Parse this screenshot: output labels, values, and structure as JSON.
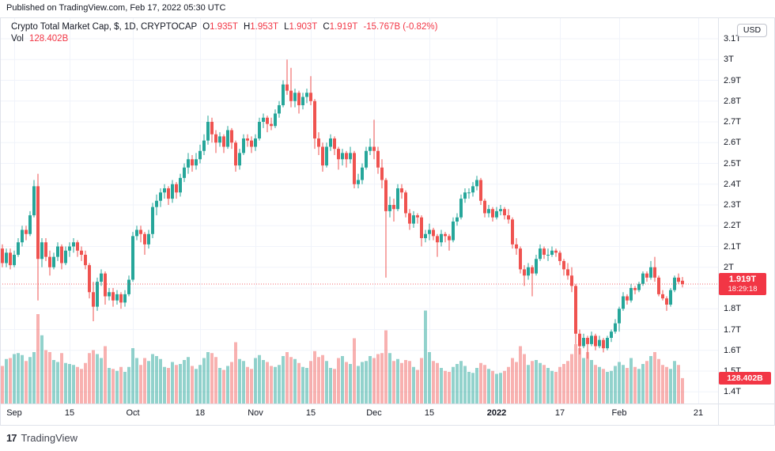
{
  "published_bar": {
    "text": "Published on TradingView.com, Feb 17, 2022 05:30 UTC"
  },
  "legend": {
    "title": "Crypto Total Market Cap, $, 1D, CRYPTOCAP",
    "open_label": "O",
    "open": "1.935T",
    "high_label": "H",
    "high": "1.953T",
    "low_label": "L",
    "low": "1.903T",
    "close_label": "C",
    "close": "1.919T",
    "change": "-15.767B (-0.82%)",
    "vol_label": "Vol",
    "vol": "128.402B"
  },
  "price_axis": {
    "currency": "USD",
    "labels": [
      {
        "text": "3.1T",
        "value": 3.1
      },
      {
        "text": "3T",
        "value": 3.0
      },
      {
        "text": "2.9T",
        "value": 2.9
      },
      {
        "text": "2.8T",
        "value": 2.8
      },
      {
        "text": "2.7T",
        "value": 2.7
      },
      {
        "text": "2.6T",
        "value": 2.6
      },
      {
        "text": "2.5T",
        "value": 2.5
      },
      {
        "text": "2.4T",
        "value": 2.4
      },
      {
        "text": "2.3T",
        "value": 2.3
      },
      {
        "text": "2.2T",
        "value": 2.2
      },
      {
        "text": "2.1T",
        "value": 2.1
      },
      {
        "text": "2T",
        "value": 2.0
      },
      {
        "text": "1.8T",
        "value": 1.8
      },
      {
        "text": "1.7T",
        "value": 1.7
      },
      {
        "text": "1.6T",
        "value": 1.6
      },
      {
        "text": "1.5T",
        "value": 1.5
      },
      {
        "text": "1.4T",
        "value": 1.4
      }
    ]
  },
  "price_label": {
    "value": "1.919T",
    "countdown": "18:29:18"
  },
  "volume_label": {
    "value": "128.402B"
  },
  "time_axis": {
    "labels": [
      {
        "text": "Sep",
        "i": 3
      },
      {
        "text": "15",
        "i": 17
      },
      {
        "text": "Oct",
        "i": 33
      },
      {
        "text": "18",
        "i": 50
      },
      {
        "text": "Nov",
        "i": 64
      },
      {
        "text": "15",
        "i": 78
      },
      {
        "text": "Dec",
        "i": 94
      },
      {
        "text": "15",
        "i": 108
      },
      {
        "text": "2022",
        "i": 125,
        "bold": true
      },
      {
        "text": "17",
        "i": 141
      },
      {
        "text": "Feb",
        "i": 156
      },
      {
        "text": "21",
        "i": 176
      }
    ]
  },
  "footer": {
    "logo_mark": "17",
    "brand": "TradingView"
  },
  "colors": {
    "up": "#26a69a",
    "down": "#ef5350",
    "volume_up": "rgba(38,166,154,0.5)",
    "volume_down": "rgba(239,83,80,0.45)",
    "accent_red": "#f23645",
    "grid": "#f0f3fa",
    "border": "#e0e3eb",
    "text": "#131722"
  },
  "chart_data": {
    "type": "candlestick",
    "symbol": "Crypto Total Market Cap, $, 1D, CRYPTOCAP",
    "interval": "1D",
    "start_date": "2021-08-29",
    "end_date": "2022-02-17",
    "price_unit": "trillion USD",
    "volume_unit": "billion USD",
    "ylim": [
      1.4,
      3.1
    ],
    "current_price": 1.919,
    "last_ohlc": {
      "o": 1.935,
      "h": 1.953,
      "l": 1.903,
      "c": 1.919
    },
    "last_volume": 128.402,
    "candles": [
      [
        2.09,
        2.11,
        2.0,
        2.02
      ],
      [
        2.02,
        2.09,
        2.0,
        2.07
      ],
      [
        2.07,
        2.09,
        1.99,
        2.01
      ],
      [
        2.01,
        2.08,
        2.0,
        2.06
      ],
      [
        2.06,
        2.14,
        2.05,
        2.12
      ],
      [
        2.12,
        2.2,
        2.1,
        2.18
      ],
      [
        2.18,
        2.2,
        2.13,
        2.16
      ],
      [
        2.16,
        2.27,
        2.15,
        2.25
      ],
      [
        2.25,
        2.42,
        2.24,
        2.39
      ],
      [
        2.39,
        2.45,
        1.84,
        2.04
      ],
      [
        2.04,
        2.14,
        2.0,
        2.12
      ],
      [
        2.12,
        2.14,
        2.03,
        2.05
      ],
      [
        2.05,
        2.08,
        1.96,
        2.0
      ],
      [
        2.0,
        2.07,
        1.99,
        2.05
      ],
      [
        2.05,
        2.12,
        2.03,
        2.1
      ],
      [
        2.1,
        2.11,
        1.99,
        2.02
      ],
      [
        2.02,
        2.1,
        2.01,
        2.08
      ],
      [
        2.08,
        2.12,
        2.05,
        2.1
      ],
      [
        2.1,
        2.14,
        2.07,
        2.12
      ],
      [
        2.12,
        2.13,
        2.05,
        2.08
      ],
      [
        2.08,
        2.1,
        2.03,
        2.06
      ],
      [
        2.06,
        2.08,
        1.99,
        2.01
      ],
      [
        2.01,
        2.02,
        1.85,
        1.88
      ],
      [
        1.88,
        1.93,
        1.74,
        1.81
      ],
      [
        1.81,
        1.95,
        1.79,
        1.93
      ],
      [
        1.93,
        1.99,
        1.91,
        1.97
      ],
      [
        1.97,
        1.98,
        1.82,
        1.86
      ],
      [
        1.86,
        1.9,
        1.84,
        1.88
      ],
      [
        1.88,
        1.9,
        1.81,
        1.84
      ],
      [
        1.84,
        1.89,
        1.82,
        1.87
      ],
      [
        1.87,
        1.88,
        1.8,
        1.83
      ],
      [
        1.83,
        1.89,
        1.81,
        1.87
      ],
      [
        1.87,
        1.96,
        1.86,
        1.94
      ],
      [
        1.94,
        2.17,
        1.93,
        2.15
      ],
      [
        2.15,
        2.2,
        2.13,
        2.18
      ],
      [
        2.18,
        2.2,
        2.12,
        2.16
      ],
      [
        2.16,
        2.17,
        2.06,
        2.11
      ],
      [
        2.11,
        2.18,
        2.09,
        2.16
      ],
      [
        2.16,
        2.31,
        2.14,
        2.29
      ],
      [
        2.29,
        2.35,
        2.25,
        2.32
      ],
      [
        2.32,
        2.38,
        2.29,
        2.36
      ],
      [
        2.36,
        2.4,
        2.33,
        2.38
      ],
      [
        2.38,
        2.39,
        2.3,
        2.33
      ],
      [
        2.33,
        2.42,
        2.31,
        2.4
      ],
      [
        2.4,
        2.41,
        2.33,
        2.36
      ],
      [
        2.36,
        2.45,
        2.34,
        2.43
      ],
      [
        2.43,
        2.5,
        2.41,
        2.48
      ],
      [
        2.48,
        2.55,
        2.45,
        2.52
      ],
      [
        2.52,
        2.54,
        2.46,
        2.49
      ],
      [
        2.49,
        2.55,
        2.47,
        2.52
      ],
      [
        2.52,
        2.59,
        2.5,
        2.56
      ],
      [
        2.56,
        2.64,
        2.54,
        2.61
      ],
      [
        2.61,
        2.73,
        2.59,
        2.7
      ],
      [
        2.7,
        2.72,
        2.6,
        2.64
      ],
      [
        2.64,
        2.66,
        2.55,
        2.6
      ],
      [
        2.6,
        2.65,
        2.58,
        2.63
      ],
      [
        2.63,
        2.64,
        2.55,
        2.58
      ],
      [
        2.58,
        2.68,
        2.57,
        2.66
      ],
      [
        2.66,
        2.67,
        2.57,
        2.6
      ],
      [
        2.6,
        2.61,
        2.46,
        2.49
      ],
      [
        2.49,
        2.57,
        2.47,
        2.55
      ],
      [
        2.55,
        2.64,
        2.54,
        2.62
      ],
      [
        2.62,
        2.64,
        2.58,
        2.61
      ],
      [
        2.61,
        2.63,
        2.55,
        2.58
      ],
      [
        2.58,
        2.64,
        2.56,
        2.62
      ],
      [
        2.62,
        2.72,
        2.61,
        2.7
      ],
      [
        2.7,
        2.74,
        2.67,
        2.72
      ],
      [
        2.72,
        2.73,
        2.65,
        2.69
      ],
      [
        2.69,
        2.72,
        2.66,
        2.68
      ],
      [
        2.68,
        2.76,
        2.67,
        2.74
      ],
      [
        2.74,
        2.8,
        2.72,
        2.78
      ],
      [
        2.78,
        2.9,
        2.77,
        2.88
      ],
      [
        2.88,
        3.0,
        2.83,
        2.85
      ],
      [
        2.85,
        2.96,
        2.77,
        2.8
      ],
      [
        2.8,
        2.86,
        2.77,
        2.84
      ],
      [
        2.84,
        2.85,
        2.74,
        2.78
      ],
      [
        2.78,
        2.84,
        2.76,
        2.82
      ],
      [
        2.82,
        2.86,
        2.79,
        2.84
      ],
      [
        2.84,
        2.92,
        2.78,
        2.8
      ],
      [
        2.8,
        2.81,
        2.57,
        2.62
      ],
      [
        2.62,
        2.65,
        2.54,
        2.58
      ],
      [
        2.58,
        2.6,
        2.46,
        2.49
      ],
      [
        2.49,
        2.6,
        2.48,
        2.58
      ],
      [
        2.58,
        2.64,
        2.56,
        2.62
      ],
      [
        2.62,
        2.63,
        2.54,
        2.57
      ],
      [
        2.57,
        2.58,
        2.47,
        2.52
      ],
      [
        2.52,
        2.57,
        2.49,
        2.55
      ],
      [
        2.55,
        2.56,
        2.48,
        2.52
      ],
      [
        2.52,
        2.58,
        2.5,
        2.55
      ],
      [
        2.55,
        2.56,
        2.38,
        2.4
      ],
      [
        2.4,
        2.45,
        2.38,
        2.42
      ],
      [
        2.42,
        2.5,
        2.4,
        2.48
      ],
      [
        2.48,
        2.58,
        2.47,
        2.56
      ],
      [
        2.56,
        2.62,
        2.54,
        2.58
      ],
      [
        2.58,
        2.71,
        2.52,
        2.56
      ],
      [
        2.56,
        2.58,
        2.45,
        2.48
      ],
      [
        2.48,
        2.52,
        2.38,
        2.42
      ],
      [
        2.42,
        2.43,
        1.95,
        2.27
      ],
      [
        2.27,
        2.34,
        2.24,
        2.3
      ],
      [
        2.3,
        2.33,
        2.22,
        2.28
      ],
      [
        2.28,
        2.4,
        2.27,
        2.38
      ],
      [
        2.38,
        2.4,
        2.33,
        2.36
      ],
      [
        2.36,
        2.37,
        2.24,
        2.26
      ],
      [
        2.26,
        2.28,
        2.18,
        2.21
      ],
      [
        2.21,
        2.27,
        2.19,
        2.25
      ],
      [
        2.25,
        2.26,
        2.21,
        2.24
      ],
      [
        2.24,
        2.25,
        2.1,
        2.14
      ],
      [
        2.14,
        2.18,
        2.12,
        2.16
      ],
      [
        2.16,
        2.21,
        2.13,
        2.18
      ],
      [
        2.18,
        2.19,
        2.13,
        2.15
      ],
      [
        2.15,
        2.16,
        2.05,
        2.12
      ],
      [
        2.12,
        2.18,
        2.1,
        2.16
      ],
      [
        2.16,
        2.17,
        2.12,
        2.15
      ],
      [
        2.15,
        2.16,
        2.08,
        2.13
      ],
      [
        2.13,
        2.24,
        2.12,
        2.22
      ],
      [
        2.22,
        2.26,
        2.2,
        2.24
      ],
      [
        2.24,
        2.35,
        2.23,
        2.33
      ],
      [
        2.33,
        2.38,
        2.31,
        2.36
      ],
      [
        2.36,
        2.38,
        2.33,
        2.36
      ],
      [
        2.36,
        2.41,
        2.34,
        2.39
      ],
      [
        2.39,
        2.44,
        2.37,
        2.42
      ],
      [
        2.42,
        2.43,
        2.3,
        2.32
      ],
      [
        2.32,
        2.33,
        2.24,
        2.26
      ],
      [
        2.26,
        2.3,
        2.24,
        2.28
      ],
      [
        2.28,
        2.29,
        2.22,
        2.24
      ],
      [
        2.24,
        2.29,
        2.23,
        2.27
      ],
      [
        2.27,
        2.3,
        2.25,
        2.28
      ],
      [
        2.28,
        2.29,
        2.23,
        2.25
      ],
      [
        2.25,
        2.28,
        2.21,
        2.23
      ],
      [
        2.23,
        2.24,
        2.09,
        2.11
      ],
      [
        2.11,
        2.14,
        2.06,
        2.09
      ],
      [
        2.09,
        2.1,
        1.97,
        1.99
      ],
      [
        1.99,
        2.01,
        1.91,
        1.96
      ],
      [
        1.96,
        2.02,
        1.94,
        2.0
      ],
      [
        2.0,
        2.01,
        1.86,
        1.97
      ],
      [
        1.97,
        2.06,
        1.96,
        2.04
      ],
      [
        2.04,
        2.11,
        2.03,
        2.09
      ],
      [
        2.09,
        2.1,
        2.04,
        2.06
      ],
      [
        2.06,
        2.09,
        2.03,
        2.06
      ],
      [
        2.06,
        2.1,
        2.05,
        2.08
      ],
      [
        2.08,
        2.09,
        2.05,
        2.07
      ],
      [
        2.07,
        2.08,
        2.01,
        2.03
      ],
      [
        2.03,
        2.04,
        1.96,
        1.99
      ],
      [
        1.99,
        2.02,
        1.94,
        1.96
      ],
      [
        1.96,
        2.0,
        1.88,
        1.91
      ],
      [
        1.91,
        1.92,
        1.63,
        1.68
      ],
      [
        1.68,
        1.7,
        1.58,
        1.62
      ],
      [
        1.62,
        1.68,
        1.61,
        1.66
      ],
      [
        1.66,
        1.67,
        1.56,
        1.63
      ],
      [
        1.63,
        1.69,
        1.62,
        1.67
      ],
      [
        1.67,
        1.68,
        1.6,
        1.62
      ],
      [
        1.62,
        1.67,
        1.61,
        1.65
      ],
      [
        1.65,
        1.66,
        1.59,
        1.61
      ],
      [
        1.61,
        1.67,
        1.6,
        1.66
      ],
      [
        1.66,
        1.7,
        1.64,
        1.69
      ],
      [
        1.69,
        1.75,
        1.68,
        1.73
      ],
      [
        1.73,
        1.81,
        1.69,
        1.8
      ],
      [
        1.8,
        1.88,
        1.79,
        1.86
      ],
      [
        1.86,
        1.87,
        1.82,
        1.84
      ],
      [
        1.84,
        1.92,
        1.83,
        1.9
      ],
      [
        1.9,
        1.91,
        1.87,
        1.89
      ],
      [
        1.89,
        1.93,
        1.88,
        1.92
      ],
      [
        1.92,
        1.98,
        1.91,
        1.97
      ],
      [
        1.97,
        1.98,
        1.93,
        1.95
      ],
      [
        1.95,
        2.03,
        1.94,
        2.0
      ],
      [
        2.0,
        2.05,
        1.93,
        1.95
      ],
      [
        1.95,
        1.96,
        1.86,
        1.87
      ],
      [
        1.87,
        1.89,
        1.84,
        1.85
      ],
      [
        1.85,
        1.86,
        1.79,
        1.82
      ],
      [
        1.82,
        1.9,
        1.81,
        1.89
      ],
      [
        1.89,
        1.96,
        1.88,
        1.95
      ],
      [
        1.95,
        1.97,
        1.92,
        1.93
      ],
      [
        1.935,
        1.953,
        1.903,
        1.919
      ]
    ],
    "volumes": [
      190,
      225,
      230,
      250,
      255,
      245,
      215,
      235,
      260,
      452,
      345,
      270,
      260,
      220,
      210,
      255,
      205,
      200,
      195,
      185,
      175,
      205,
      255,
      270,
      250,
      230,
      290,
      180,
      175,
      165,
      185,
      160,
      185,
      280,
      230,
      195,
      230,
      215,
      250,
      240,
      225,
      185,
      180,
      210,
      195,
      200,
      220,
      235,
      190,
      175,
      195,
      230,
      260,
      255,
      235,
      180,
      170,
      190,
      210,
      310,
      225,
      215,
      185,
      175,
      230,
      245,
      220,
      210,
      190,
      185,
      195,
      240,
      260,
      235,
      225,
      205,
      185,
      180,
      215,
      265,
      235,
      245,
      215,
      180,
      175,
      230,
      240,
      210,
      200,
      330,
      190,
      210,
      215,
      240,
      230,
      250,
      255,
      370,
      255,
      215,
      225,
      205,
      220,
      215,
      185,
      170,
      230,
      470,
      260,
      215,
      205,
      180,
      165,
      160,
      185,
      200,
      215,
      190,
      160,
      155,
      180,
      205,
      195,
      175,
      165,
      150,
      155,
      165,
      185,
      230,
      210,
      290,
      250,
      195,
      215,
      220,
      205,
      195,
      180,
      165,
      160,
      185,
      200,
      215,
      250,
      300,
      280,
      230,
      260,
      220,
      195,
      185,
      175,
      160,
      165,
      190,
      210,
      195,
      180,
      230,
      185,
      175,
      200,
      215,
      240,
      260,
      225,
      195,
      185,
      175,
      215,
      195,
      128.402
    ]
  }
}
